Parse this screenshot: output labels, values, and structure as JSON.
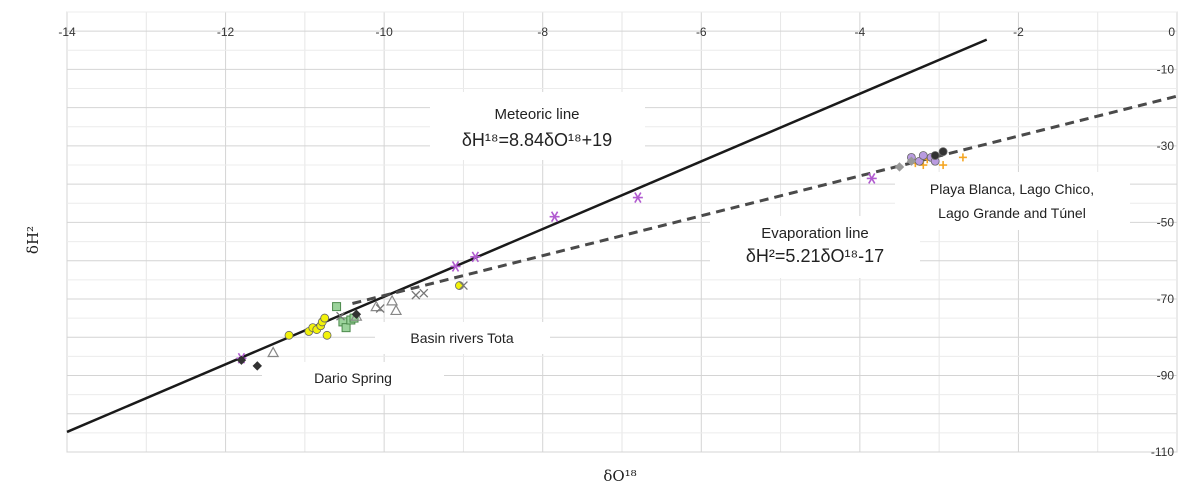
{
  "chart_data": {
    "type": "scatter",
    "xlabel": "δO¹⁸",
    "ylabel": "δH²",
    "xlim": [
      -14,
      0
    ],
    "ylim": [
      -110,
      5
    ],
    "x_axis_position": "top",
    "y_axis_position": "right",
    "grid": true,
    "x_ticks": [
      -14,
      -12,
      -10,
      -8,
      -6,
      -4,
      -2
    ],
    "y_ticks": [
      -10,
      -30,
      -50,
      -70,
      -90,
      -110
    ],
    "x_tick_labels": [
      "-14",
      "-12",
      "-10",
      "-8",
      "-6",
      "-4",
      "-2"
    ],
    "y_tick_labels": [
      "-10",
      "-30",
      "-50",
      "-70",
      "-90",
      "-110"
    ],
    "corner_label": "0",
    "lines": [
      {
        "name": "Meteoric line",
        "style": "solid",
        "slope": 8.84,
        "intercept": 19,
        "x_range": [
          -14,
          -2.4
        ],
        "color": "#1a1a1a"
      },
      {
        "name": "Evaporation line",
        "style": "dashed",
        "slope": 5.21,
        "intercept": -17,
        "x_range": [
          -10.4,
          0
        ],
        "color": "#4a4a4a"
      }
    ],
    "annotations": [
      {
        "lines": [
          "Meteoric line",
          "δH¹⁸=8.84δO¹⁸+19"
        ]
      },
      {
        "lines": [
          "Evaporation line",
          "δH²=5.21δO¹⁸-17"
        ]
      },
      {
        "lines": [
          "Playa Blanca, Lago Chico,",
          "Lago Grande and Túnel"
        ]
      },
      {
        "lines": [
          "Basin rivers Tota"
        ]
      },
      {
        "lines": [
          "Dario Spring"
        ]
      }
    ],
    "series": [
      {
        "marker": "asterisk",
        "color": "#b15bd0",
        "x": [
          -11.8,
          -9.1,
          -8.85,
          -7.85,
          -6.8,
          -3.85
        ],
        "y": [
          -85.5,
          -61.5,
          -59,
          -48.5,
          -43.5,
          -38.5
        ]
      },
      {
        "marker": "circle",
        "color": "#f2f20a",
        "x": [
          -11.2,
          -10.95,
          -10.9,
          -10.85,
          -10.8,
          -10.78,
          -10.75,
          -10.72,
          -9.05
        ],
        "y": [
          -79.5,
          -78.5,
          -77.5,
          -78,
          -77,
          -76,
          -75,
          -79.5,
          -66.5
        ]
      },
      {
        "marker": "square",
        "color": "#9bd39b",
        "x": [
          -10.6,
          -10.52,
          -10.48,
          -10.42,
          -10.38
        ],
        "y": [
          -72,
          -76,
          -77.5,
          -75.5,
          -75
        ]
      },
      {
        "marker": "triangle",
        "color": "#888888",
        "x": [
          -11.4,
          -10.35,
          -10.1,
          -9.9,
          -9.85
        ],
        "y": [
          -84,
          -74.5,
          -72,
          -70.5,
          -73
        ]
      },
      {
        "marker": "cross",
        "color": "#777777",
        "x": [
          -10.55,
          -10.05,
          -9.6,
          -9.5,
          -9.0
        ],
        "y": [
          -74.5,
          -72.5,
          -69,
          -68.5,
          -66.5
        ]
      },
      {
        "marker": "diamond",
        "color": "#333333",
        "x": [
          -11.8,
          -11.6,
          -10.35
        ],
        "y": [
          -86,
          -87.5,
          -74
        ]
      },
      {
        "marker": "plus",
        "color": "#f5a623",
        "x": [
          -3.3,
          -3.2,
          -3.15,
          -3.05,
          -2.95,
          -2.7
        ],
        "y": [
          -34.5,
          -35,
          -33.5,
          -34,
          -35,
          -33
        ]
      },
      {
        "marker": "circle",
        "color": "#b99be0",
        "x": [
          -3.35,
          -3.25,
          -3.2,
          -3.1,
          -3.05
        ],
        "y": [
          -33,
          -34,
          -32.5,
          -33,
          -34
        ]
      },
      {
        "marker": "circle",
        "color": "#333333",
        "x": [
          -2.95,
          -3.05
        ],
        "y": [
          -31.5,
          -32.5
        ]
      },
      {
        "marker": "diamond",
        "color": "#999999",
        "x": [
          -3.5,
          -3.35
        ],
        "y": [
          -35.5,
          -34
        ]
      }
    ]
  }
}
